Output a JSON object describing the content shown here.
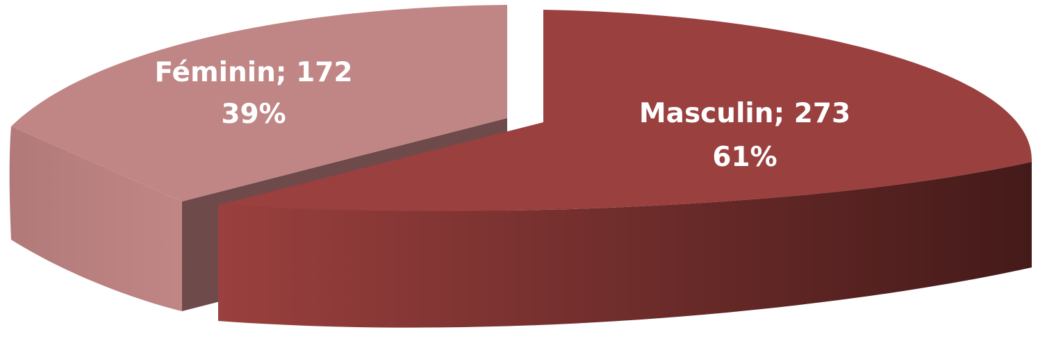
{
  "chart_data": {
    "type": "pie",
    "style": "3d-exploded",
    "categories": [
      "Masculin",
      "Féminin"
    ],
    "values": [
      273,
      172
    ],
    "percentages": [
      "61%",
      "39%"
    ],
    "labels": [
      {
        "line1": "Masculin; 273",
        "line2": "61%"
      },
      {
        "line1": "Féminin; 172",
        "line2": "39%"
      }
    ],
    "colors": {
      "masculin_top": "#9a403e",
      "masculin_side_light": "#9a403e",
      "masculin_side_dark": "#441a19",
      "feminin_top": "#c08685",
      "feminin_side": "#c08685",
      "feminin_inner": "#6e4a4b"
    },
    "title": "",
    "legend": "none"
  }
}
